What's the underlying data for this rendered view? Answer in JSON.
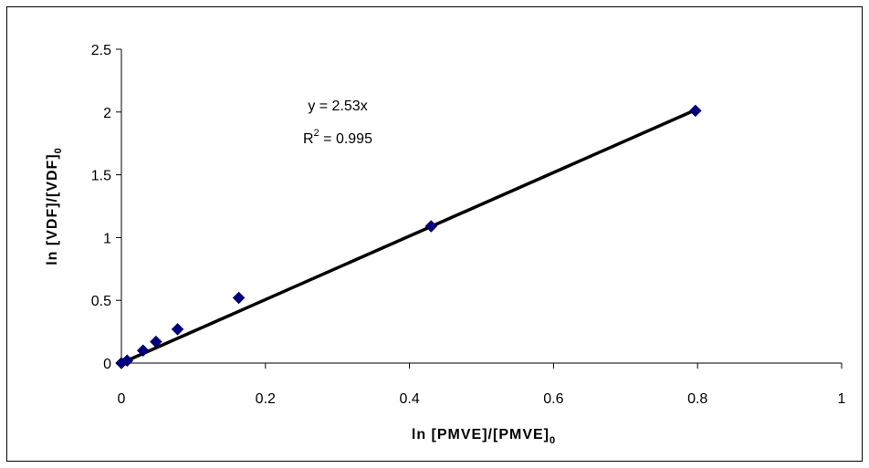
{
  "chart_data": {
    "type": "scatter",
    "xlabel": "ln [PMVE]/[PMVE]",
    "xlabel_sub": "0",
    "ylabel": "ln [VDF]/[VDF]",
    "ylabel_sub": "0",
    "xlim": [
      0,
      1
    ],
    "ylim": [
      0,
      2.5
    ],
    "x_ticks": [
      "0",
      "0.2",
      "0.4",
      "0.6",
      "0.8",
      "1"
    ],
    "y_ticks": [
      "0",
      "0.5",
      "1",
      "1.5",
      "2",
      "2.5"
    ],
    "x_tick_values": [
      0,
      0.2,
      0.4,
      0.6,
      0.8,
      1
    ],
    "y_tick_values": [
      0,
      0.5,
      1,
      1.5,
      2,
      2.5
    ],
    "grid": false,
    "series": [
      {
        "marker": "diamond",
        "color": "#000080",
        "points": [
          {
            "x": 0.0,
            "y": 0.0
          },
          {
            "x": 0.008,
            "y": 0.02
          },
          {
            "x": 0.03,
            "y": 0.1
          },
          {
            "x": 0.048,
            "y": 0.17
          },
          {
            "x": 0.078,
            "y": 0.27
          },
          {
            "x": 0.163,
            "y": 0.52
          },
          {
            "x": 0.43,
            "y": 1.09
          },
          {
            "x": 0.797,
            "y": 2.01
          }
        ]
      }
    ],
    "trendline": {
      "slope": 2.53,
      "x_range": [
        0,
        0.8
      ],
      "color": "#000000",
      "equation": "y = 2.53x",
      "r2_label": "R",
      "r2_sup": "2",
      "r2_value": " = 0.995"
    }
  }
}
